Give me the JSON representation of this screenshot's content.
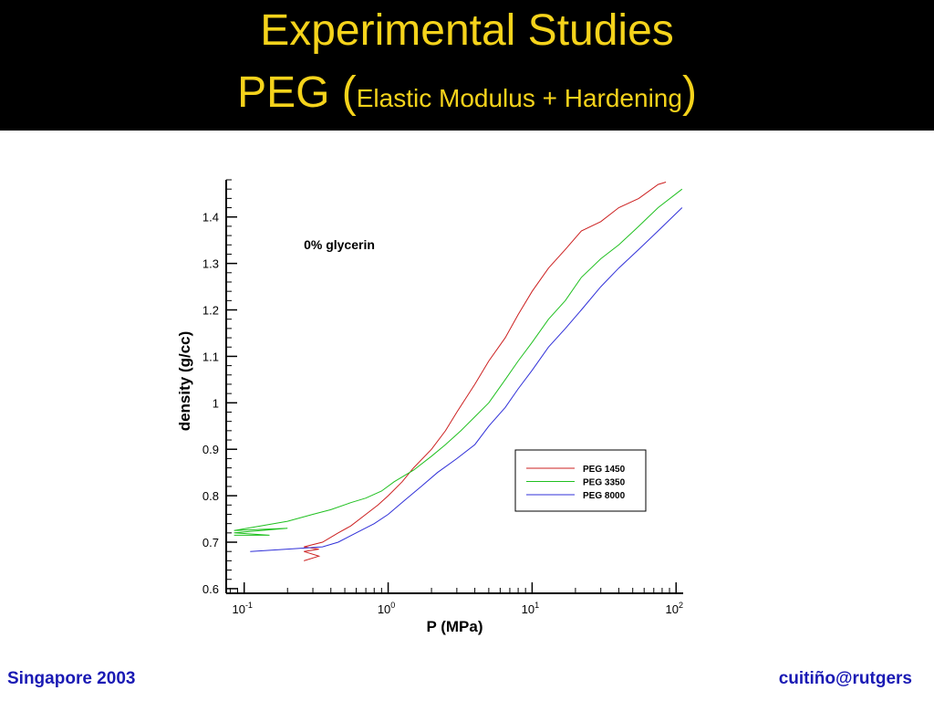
{
  "slide": {
    "title_line1": "Experimental Studies",
    "title_prefix": "PEG (",
    "title_inner": "Elastic Modulus + Hardening",
    "title_suffix": ")",
    "footer_left": "Singapore 2003",
    "footer_right": "cuitiño@rutgers",
    "colors": {
      "header_bg": "#000000",
      "title": "#f5d31b",
      "footer": "#1a1ab4"
    }
  },
  "chart_data": {
    "type": "line",
    "annotation": "0% glycerin",
    "xlabel": "P (MPa)",
    "ylabel": "density (g/cc)",
    "x_scale": "log",
    "xlim": [
      0.075,
      112
    ],
    "ylim": [
      0.59,
      1.48
    ],
    "x_ticks": [
      {
        "base": "10",
        "exp": "-1",
        "value": 0.1
      },
      {
        "base": "10",
        "exp": "0",
        "value": 1
      },
      {
        "base": "10",
        "exp": "1",
        "value": 10
      },
      {
        "base": "10",
        "exp": "2",
        "value": 100
      }
    ],
    "y_ticks": [
      {
        "label": "0.6",
        "value": 0.6
      },
      {
        "label": "0.7",
        "value": 0.7
      },
      {
        "label": "0.8",
        "value": 0.8
      },
      {
        "label": "0.9",
        "value": 0.9
      },
      {
        "label": "1",
        "value": 1.0
      },
      {
        "label": "1.1",
        "value": 1.1
      },
      {
        "label": "1.2",
        "value": 1.2
      },
      {
        "label": "1.3",
        "value": 1.3
      },
      {
        "label": "1.4",
        "value": 1.4
      }
    ],
    "legend_placement": "lower-right",
    "series": [
      {
        "name": "PEG 1450",
        "color": "#cc2020",
        "x": [
          0.26,
          0.33,
          0.26,
          0.33,
          0.26,
          0.35,
          0.45,
          0.55,
          0.7,
          0.85,
          1.0,
          1.25,
          1.5,
          2.0,
          2.5,
          3.0,
          4.0,
          5.0,
          6.5,
          8.0,
          10.0,
          13.0,
          17.0,
          22.0,
          30.0,
          40.0,
          55.0,
          75.0,
          85.0
        ],
        "y": [
          0.66,
          0.67,
          0.68,
          0.685,
          0.69,
          0.7,
          0.72,
          0.735,
          0.76,
          0.78,
          0.8,
          0.83,
          0.86,
          0.9,
          0.94,
          0.98,
          1.04,
          1.09,
          1.14,
          1.19,
          1.24,
          1.29,
          1.33,
          1.37,
          1.39,
          1.42,
          1.44,
          1.47,
          1.475
        ]
      },
      {
        "name": "PEG 3350",
        "color": "#20c020",
        "x": [
          0.085,
          0.15,
          0.085,
          0.2,
          0.085,
          0.2,
          0.3,
          0.4,
          0.55,
          0.7,
          0.9,
          1.1,
          1.5,
          2.0,
          2.5,
          3.2,
          4.0,
          5.0,
          6.5,
          8.0,
          10.0,
          13.0,
          17.0,
          22.0,
          30.0,
          40.0,
          55.0,
          75.0,
          110.0
        ],
        "y": [
          0.715,
          0.715,
          0.72,
          0.73,
          0.725,
          0.745,
          0.76,
          0.77,
          0.785,
          0.795,
          0.81,
          0.83,
          0.855,
          0.885,
          0.91,
          0.94,
          0.97,
          1.0,
          1.05,
          1.09,
          1.13,
          1.18,
          1.22,
          1.27,
          1.31,
          1.34,
          1.38,
          1.42,
          1.46
        ]
      },
      {
        "name": "PEG 8000",
        "color": "#3030d8",
        "x": [
          0.11,
          0.2,
          0.35,
          0.45,
          0.6,
          0.8,
          1.0,
          1.3,
          1.7,
          2.2,
          3.0,
          4.0,
          5.0,
          6.5,
          8.0,
          10.0,
          13.0,
          17.0,
          22.0,
          30.0,
          40.0,
          55.0,
          75.0,
          110.0
        ],
        "y": [
          0.68,
          0.685,
          0.69,
          0.7,
          0.72,
          0.74,
          0.76,
          0.79,
          0.82,
          0.85,
          0.88,
          0.91,
          0.95,
          0.99,
          1.03,
          1.07,
          1.12,
          1.16,
          1.2,
          1.25,
          1.29,
          1.33,
          1.37,
          1.42
        ]
      }
    ]
  }
}
